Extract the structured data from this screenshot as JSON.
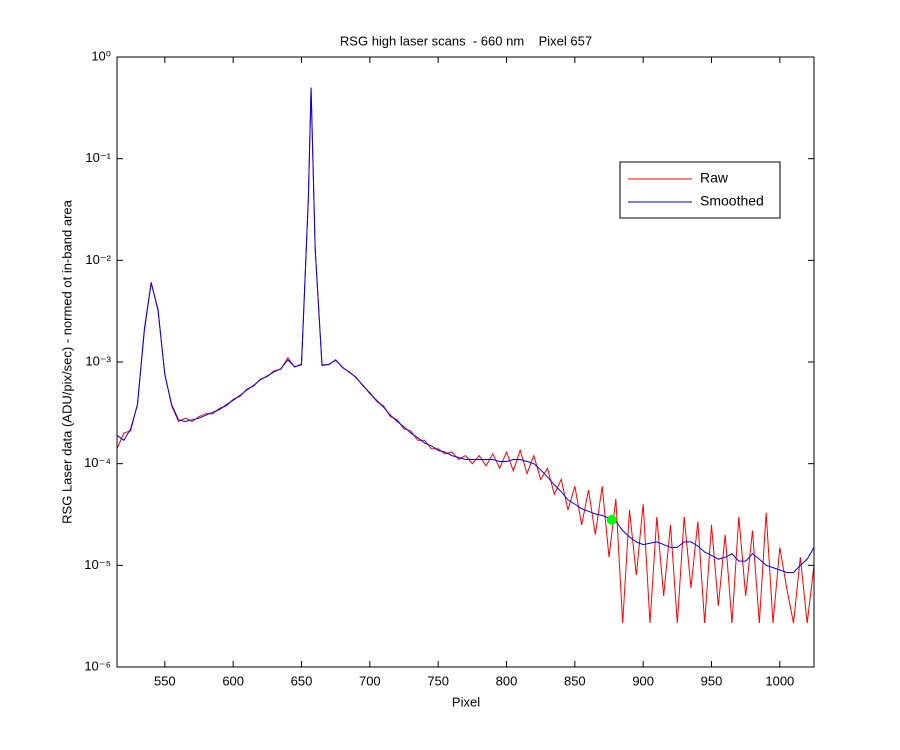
{
  "chart_data": {
    "type": "line",
    "title": "RSG high laser scans  - 660 nm    Pixel 657",
    "xlabel": "Pixel",
    "ylabel": "RSG Laser data (ADU/pix/sec) - normed ot in-band area",
    "yscale": "log",
    "xlim": [
      515,
      1025
    ],
    "ylim": [
      1e-06,
      1
    ],
    "xticks": [
      550,
      600,
      650,
      700,
      750,
      800,
      850,
      900,
      950,
      1000
    ],
    "yticks": [
      {
        "value": 1e-06,
        "label": "10⁻⁶"
      },
      {
        "value": 1e-05,
        "label": "10⁻⁵"
      },
      {
        "value": 0.0001,
        "label": "10⁻⁴"
      },
      {
        "value": 0.001,
        "label": "10⁻³"
      },
      {
        "value": 0.01,
        "label": "10⁻²"
      },
      {
        "value": 0.1,
        "label": "10⁻¹"
      },
      {
        "value": 1,
        "label": "10⁰"
      }
    ],
    "legend": "northeast",
    "x": [
      515,
      520,
      525,
      530,
      535,
      540,
      545,
      550,
      555,
      560,
      565,
      570,
      575,
      580,
      585,
      590,
      595,
      600,
      605,
      610,
      615,
      620,
      625,
      630,
      635,
      640,
      645,
      650,
      655,
      657,
      660,
      665,
      670,
      675,
      680,
      685,
      690,
      695,
      700,
      705,
      710,
      715,
      720,
      725,
      730,
      735,
      740,
      745,
      750,
      755,
      760,
      765,
      770,
      775,
      780,
      785,
      790,
      795,
      800,
      805,
      810,
      815,
      820,
      825,
      830,
      835,
      840,
      845,
      850,
      855,
      860,
      865,
      870,
      875,
      880,
      885,
      890,
      895,
      900,
      905,
      910,
      915,
      920,
      925,
      930,
      935,
      940,
      945,
      950,
      955,
      960,
      965,
      970,
      975,
      980,
      985,
      990,
      995,
      1000,
      1005,
      1010,
      1015,
      1020,
      1025
    ],
    "series": [
      {
        "name": "Raw",
        "color": "#ff0000",
        "values": [
          0.00014,
          0.0002,
          0.00021,
          0.00039,
          0.002,
          0.0061,
          0.0032,
          0.00076,
          0.00037,
          0.00026,
          0.00028,
          0.00026,
          0.00029,
          0.00031,
          0.00031,
          0.00035,
          0.00037,
          0.00043,
          0.00046,
          0.00054,
          0.00058,
          0.00068,
          0.00072,
          0.00082,
          0.00085,
          0.0011,
          0.00089,
          0.00096,
          0.04,
          0.5,
          0.013,
          0.00092,
          0.00095,
          0.00104,
          0.00089,
          0.00079,
          0.00071,
          0.00058,
          0.0005,
          0.00041,
          0.00037,
          0.00029,
          0.00027,
          0.00022,
          0.00021,
          0.00017,
          0.00017,
          0.00014,
          0.00014,
          0.000125,
          0.00013,
          0.00011,
          0.00012,
          0.0001,
          0.00012,
          9.5e-05,
          0.000125,
          9e-05,
          0.00013,
          8.5e-05,
          0.000135,
          8e-05,
          0.00012,
          7e-05,
          9e-05,
          5e-05,
          7e-05,
          3.5e-05,
          6e-05,
          2.5e-05,
          5.5e-05,
          2e-05,
          6e-05,
          1.2e-05,
          4.5e-05,
          2.7e-06,
          3.5e-05,
          8e-06,
          4e-05,
          2.7e-06,
          3e-05,
          5e-06,
          2.5e-05,
          2.7e-06,
          3e-05,
          6e-06,
          2.7e-05,
          2.7e-06,
          2.5e-05,
          4e-06,
          2e-05,
          2.7e-06,
          3e-05,
          5e-06,
          2.2e-05,
          2.7e-06,
          3.3e-05,
          2.7e-06,
          1.5e-05,
          6e-06,
          2.7e-06,
          1.2e-05,
          2.7e-06,
          1e-05
        ]
      },
      {
        "name": "Smoothed",
        "color": "#0000ff",
        "values": [
          0.00019,
          0.00017,
          0.00022,
          0.00038,
          0.0021,
          0.006,
          0.0033,
          0.00075,
          0.00038,
          0.00027,
          0.00026,
          0.00027,
          0.00028,
          0.0003,
          0.00032,
          0.00034,
          0.00038,
          0.00042,
          0.00047,
          0.00053,
          0.00059,
          0.00067,
          0.00073,
          0.0008,
          0.00086,
          0.00105,
          0.0009,
          0.00094,
          0.04,
          0.5,
          0.013,
          0.00094,
          0.00094,
          0.00105,
          0.00088,
          0.0008,
          0.0007,
          0.00059,
          0.00049,
          0.00042,
          0.00036,
          0.0003,
          0.00026,
          0.00023,
          0.0002,
          0.00018,
          0.00016,
          0.00015,
          0.000135,
          0.00013,
          0.00012,
          0.000115,
          0.00011,
          0.00011,
          0.00011,
          0.00011,
          0.00011,
          0.000105,
          0.000105,
          0.00011,
          0.00011,
          0.000105,
          0.0001,
          8.7e-05,
          7.4e-05,
          6.2e-05,
          5.3e-05,
          4.4e-05,
          4e-05,
          3.6e-05,
          3.4e-05,
          3.2e-05,
          3.1e-05,
          2.9e-05,
          2.7e-05,
          2.2e-05,
          1.9e-05,
          1.7e-05,
          1.6e-05,
          1.65e-05,
          1.7e-05,
          1.6e-05,
          1.5e-05,
          1.5e-05,
          1.7e-05,
          1.7e-05,
          1.55e-05,
          1.35e-05,
          1.25e-05,
          1.15e-05,
          1.2e-05,
          1.3e-05,
          1.1e-05,
          1.1e-05,
          1.3e-05,
          1.15e-05,
          1e-05,
          9.5e-06,
          9e-06,
          8.5e-06,
          8.5e-06,
          1e-05,
          1.15e-05,
          1.5e-05
        ]
      }
    ],
    "marker": {
      "x": 877,
      "y": 2.8e-05,
      "color": "#00ff00"
    }
  }
}
